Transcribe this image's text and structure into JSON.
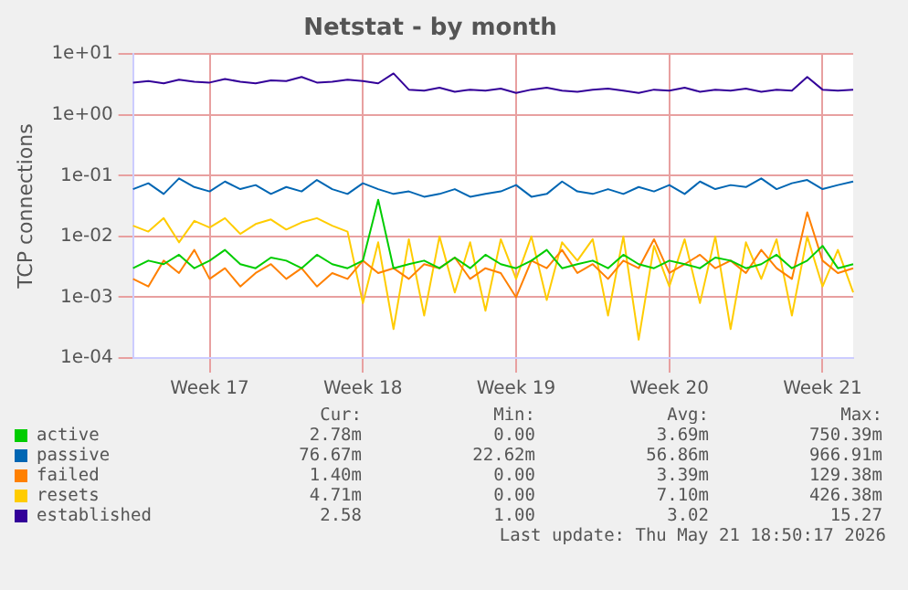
{
  "chart_data": {
    "type": "line",
    "title": "Netstat - by month",
    "ylabel": "TCP connections",
    "log": "y",
    "grid": true,
    "legend": "bottom",
    "marker": "none",
    "line_style": "solid",
    "categories": [
      null,
      null,
      null,
      null,
      null,
      "Week 17",
      null,
      null,
      null,
      null,
      null,
      null,
      null,
      null,
      null,
      "Week 18",
      null,
      null,
      null,
      null,
      null,
      null,
      null,
      null,
      null,
      "Week 19",
      null,
      null,
      null,
      null,
      null,
      null,
      null,
      null,
      null,
      "Week 20",
      null,
      null,
      null,
      null,
      null,
      null,
      null,
      null,
      null,
      "Week 21",
      null,
      null
    ],
    "ylim": [
      0.0001,
      10
    ],
    "yticks": [
      {
        "value": 0.0001,
        "label": "1e-04"
      },
      {
        "value": 0.001,
        "label": "1e-03"
      },
      {
        "value": 0.01,
        "label": "1e-02"
      },
      {
        "value": 0.1,
        "label": "1e-01"
      },
      {
        "value": 1,
        "label": "1e+00"
      },
      {
        "value": 10,
        "label": "1e+01"
      }
    ],
    "series": [
      {
        "name": "active",
        "color": "#00cc00",
        "values": [
          0.003,
          0.004,
          0.0035,
          0.005,
          0.003,
          0.004,
          0.006,
          0.0035,
          0.003,
          0.0045,
          0.004,
          0.003,
          0.005,
          0.0035,
          0.003,
          0.004,
          0.04,
          0.003,
          0.0035,
          0.004,
          0.003,
          0.0045,
          0.003,
          0.005,
          0.0035,
          0.003,
          0.004,
          0.006,
          0.003,
          0.0035,
          0.004,
          0.003,
          0.005,
          0.0035,
          0.003,
          0.004,
          0.0035,
          0.003,
          0.0045,
          0.004,
          0.003,
          0.0035,
          0.005,
          0.003,
          0.004,
          0.007,
          0.003,
          0.0035
        ]
      },
      {
        "name": "passive",
        "color": "#0066b3",
        "values": [
          0.06,
          0.075,
          0.05,
          0.09,
          0.065,
          0.055,
          0.08,
          0.06,
          0.07,
          0.05,
          0.065,
          0.055,
          0.085,
          0.06,
          0.05,
          0.075,
          0.06,
          0.05,
          0.055,
          0.045,
          0.05,
          0.06,
          0.045,
          0.05,
          0.055,
          0.07,
          0.045,
          0.05,
          0.08,
          0.055,
          0.05,
          0.06,
          0.05,
          0.065,
          0.055,
          0.07,
          0.05,
          0.08,
          0.06,
          0.07,
          0.065,
          0.09,
          0.06,
          0.075,
          0.085,
          0.06,
          0.07,
          0.08
        ]
      },
      {
        "name": "failed",
        "color": "#ff8000",
        "values": [
          0.002,
          0.0015,
          0.004,
          0.0025,
          0.006,
          0.002,
          0.003,
          0.0015,
          0.0025,
          0.0035,
          0.002,
          0.003,
          0.0015,
          0.0025,
          0.002,
          0.004,
          0.0025,
          0.003,
          0.002,
          0.0035,
          0.003,
          0.0045,
          0.002,
          0.003,
          0.0025,
          0.001,
          0.004,
          0.003,
          0.006,
          0.0025,
          0.0035,
          0.002,
          0.004,
          0.003,
          0.009,
          0.0025,
          0.0035,
          0.005,
          0.003,
          0.004,
          0.0025,
          0.006,
          0.003,
          0.002,
          0.025,
          0.004,
          0.0025,
          0.003
        ]
      },
      {
        "name": "resets",
        "color": "#ffcc00",
        "values": [
          0.015,
          0.012,
          0.02,
          0.008,
          0.018,
          0.014,
          0.02,
          0.011,
          0.016,
          0.019,
          0.013,
          0.017,
          0.02,
          0.015,
          0.012,
          0.0008,
          0.008,
          0.0003,
          0.009,
          0.0005,
          0.01,
          0.0012,
          0.008,
          0.0006,
          0.009,
          0.002,
          0.01,
          0.0009,
          0.008,
          0.004,
          0.009,
          0.0005,
          0.01,
          0.0002,
          0.007,
          0.0015,
          0.009,
          0.0008,
          0.01,
          0.0003,
          0.008,
          0.002,
          0.009,
          0.0005,
          0.01,
          0.0015,
          0.006,
          0.0012
        ]
      },
      {
        "name": "established",
        "color": "#330099",
        "values": [
          3.4,
          3.6,
          3.3,
          3.8,
          3.5,
          3.4,
          3.9,
          3.5,
          3.3,
          3.7,
          3.6,
          4.2,
          3.4,
          3.5,
          3.8,
          3.6,
          3.3,
          4.8,
          2.6,
          2.5,
          2.8,
          2.4,
          2.6,
          2.5,
          2.7,
          2.3,
          2.6,
          2.8,
          2.5,
          2.4,
          2.6,
          2.7,
          2.5,
          2.3,
          2.6,
          2.5,
          2.8,
          2.4,
          2.6,
          2.5,
          2.7,
          2.4,
          2.6,
          2.5,
          4.2,
          2.6,
          2.5,
          2.6
        ]
      }
    ],
    "annotations": [
      "Cur:",
      "Min:",
      "Avg:",
      "Max:",
      "2.78m",
      "0.00",
      "3.69m",
      "750.39m",
      "76.67m",
      "22.62m",
      "56.86m",
      "966.91m",
      "1.40m",
      "0.00",
      "3.39m",
      "129.38m",
      "4.71m",
      "0.00",
      "7.10m",
      "426.38m",
      "2.58",
      "1.00",
      "3.02",
      "15.27",
      "Last update: Thu May 21 18:50:17 2026"
    ]
  }
}
